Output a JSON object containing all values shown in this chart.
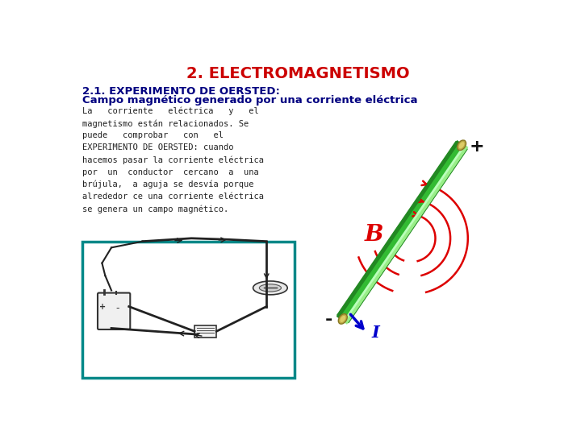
{
  "title": "2. ELECTROMAGNETISMO",
  "title_color": "#cc0000",
  "title_fontsize": 14,
  "subtitle_line1": "2.1. EXPERIMENTO DE OERSTED:",
  "subtitle_line2": "Campo magnético generado por una corriente eléctrica",
  "subtitle_color": "#000080",
  "subtitle_fontsize": 9.5,
  "body_text": "La   corriente   eléctrica   y   el\nmagnetismo están relacionados. Se\npuede   comprobar   con   el\nEXPERIMENTO DE OERSTED: cuando\nhacemos pasar la corriente eléctrica\npor  un  conductor  cercano  a  una\nbrújula,  a aguja se desvía porque\nalrededor ce una corriente eléctrica\nse genera un campo magnético.",
  "body_color": "#222222",
  "body_fontsize": 7.5,
  "background_color": "#ffffff",
  "wire_color": "#33bb33",
  "wire_highlight": "#99ee88",
  "wire_shadow": "#228822",
  "cap_color": "#bbaa44",
  "cap_highlight": "#ddcc66",
  "arc_color": "#dd0000",
  "B_color": "#dd0000",
  "I_color": "#0000cc",
  "plus_color": "#111111",
  "minus_color": "#111111",
  "box_color": "#008888"
}
